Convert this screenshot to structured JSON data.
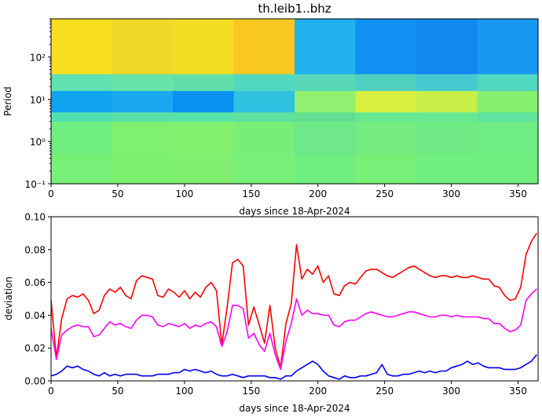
{
  "chart_data": [
    {
      "type": "heatmap",
      "title": "th.leib1..bhz",
      "xlabel": "days since 18-Apr-2024",
      "ylabel": "Period",
      "xlim": [
        0,
        365
      ],
      "ylim": [
        0.1,
        800
      ],
      "yscale": "log",
      "xticks": [
        "0",
        "50",
        "100",
        "150",
        "200",
        "250",
        "300",
        "350"
      ],
      "yticks": [
        "10⁻¹",
        "10⁰",
        "10¹",
        "10²"
      ],
      "period_bands": [
        {
          "from": 0.1,
          "to": 0.5,
          "colors": [
            "#78f078",
            "#7cf070",
            "#80ee70",
            "#78f078",
            "#70ee80",
            "#78f078",
            "#70ee80",
            "#70ee80"
          ]
        },
        {
          "from": 0.5,
          "to": 3,
          "colors": [
            "#70ee80",
            "#80f070",
            "#84f070",
            "#78ee78",
            "#6ee888",
            "#74ec80",
            "#70ea84",
            "#70ec84"
          ]
        },
        {
          "from": 3,
          "to": 5,
          "colors": [
            "#50e0b0",
            "#58e0a8",
            "#58e4a8",
            "#5ee0a0",
            "#60e090",
            "#68e890",
            "#68e890",
            "#60e4a0"
          ]
        },
        {
          "from": 5,
          "to": 16,
          "colors": [
            "#10a4f0",
            "#1aa8f0",
            "#0a90f0",
            "#30c0e0",
            "#90f070",
            "#d8f040",
            "#c8f048",
            "#88f070"
          ]
        },
        {
          "from": 16,
          "to": 40,
          "colors": [
            "#60e0b0",
            "#68e4a8",
            "#60e0a8",
            "#50d8c0",
            "#58d8b8",
            "#50d0c0",
            "#48c8d0",
            "#50d8c0"
          ]
        },
        {
          "from": 40,
          "to": 800,
          "colors": [
            "#f8e020",
            "#f0d828",
            "#f4dc20",
            "#f8c820",
            "#20b0f0",
            "#1090f0",
            "#1088f0",
            "#1898f0"
          ]
        }
      ]
    },
    {
      "type": "line",
      "xlabel": "days since 18-Apr-2024",
      "ylabel": "deviation",
      "xlim": [
        0,
        365
      ],
      "ylim": [
        0,
        0.1
      ],
      "xticks": [
        "0",
        "50",
        "100",
        "150",
        "200",
        "250",
        "300",
        "350"
      ],
      "yticks": [
        "0.00",
        "0.02",
        "0.04",
        "0.06",
        "0.08",
        "0.10"
      ],
      "x": [
        0,
        4,
        8,
        12,
        16,
        20,
        24,
        28,
        32,
        36,
        40,
        44,
        48,
        52,
        56,
        60,
        64,
        68,
        72,
        76,
        80,
        84,
        88,
        92,
        96,
        100,
        104,
        108,
        112,
        116,
        120,
        124,
        128,
        132,
        136,
        140,
        144,
        148,
        152,
        156,
        160,
        164,
        168,
        172,
        176,
        180,
        184,
        188,
        192,
        196,
        200,
        204,
        208,
        212,
        216,
        220,
        224,
        228,
        232,
        236,
        240,
        244,
        248,
        252,
        256,
        260,
        264,
        268,
        272,
        276,
        280,
        284,
        288,
        292,
        296,
        300,
        304,
        308,
        312,
        316,
        320,
        324,
        328,
        332,
        336,
        340,
        344,
        348,
        352,
        356,
        360,
        364
      ],
      "series": [
        {
          "color": "#ff0000",
          "values": [
            0.049,
            0.014,
            0.038,
            0.05,
            0.052,
            0.051,
            0.053,
            0.049,
            0.041,
            0.043,
            0.052,
            0.056,
            0.054,
            0.057,
            0.052,
            0.05,
            0.061,
            0.064,
            0.063,
            0.062,
            0.052,
            0.051,
            0.056,
            0.054,
            0.051,
            0.055,
            0.05,
            0.054,
            0.051,
            0.057,
            0.06,
            0.055,
            0.022,
            0.045,
            0.072,
            0.074,
            0.07,
            0.034,
            0.045,
            0.034,
            0.023,
            0.046,
            0.02,
            0.008,
            0.035,
            0.047,
            0.083,
            0.062,
            0.068,
            0.065,
            0.07,
            0.06,
            0.064,
            0.053,
            0.052,
            0.058,
            0.06,
            0.059,
            0.063,
            0.067,
            0.068,
            0.068,
            0.066,
            0.064,
            0.063,
            0.065,
            0.067,
            0.069,
            0.07,
            0.068,
            0.066,
            0.064,
            0.063,
            0.064,
            0.064,
            0.063,
            0.064,
            0.063,
            0.063,
            0.064,
            0.063,
            0.062,
            0.062,
            0.058,
            0.057,
            0.052,
            0.049,
            0.05,
            0.057,
            0.077,
            0.085,
            0.09
          ]
        },
        {
          "color": "#ff00ff",
          "values": [
            0.032,
            0.013,
            0.028,
            0.031,
            0.033,
            0.034,
            0.033,
            0.033,
            0.027,
            0.028,
            0.032,
            0.036,
            0.034,
            0.035,
            0.033,
            0.032,
            0.037,
            0.04,
            0.04,
            0.039,
            0.034,
            0.033,
            0.035,
            0.034,
            0.033,
            0.035,
            0.032,
            0.034,
            0.033,
            0.035,
            0.036,
            0.033,
            0.021,
            0.03,
            0.046,
            0.046,
            0.044,
            0.026,
            0.029,
            0.022,
            0.018,
            0.029,
            0.016,
            0.007,
            0.024,
            0.035,
            0.05,
            0.04,
            0.043,
            0.041,
            0.041,
            0.04,
            0.04,
            0.034,
            0.033,
            0.036,
            0.037,
            0.037,
            0.039,
            0.041,
            0.042,
            0.041,
            0.04,
            0.039,
            0.039,
            0.04,
            0.041,
            0.042,
            0.042,
            0.041,
            0.04,
            0.039,
            0.039,
            0.04,
            0.04,
            0.039,
            0.04,
            0.039,
            0.039,
            0.039,
            0.039,
            0.038,
            0.038,
            0.035,
            0.035,
            0.032,
            0.03,
            0.031,
            0.034,
            0.049,
            0.053,
            0.056
          ]
        },
        {
          "color": "#0000ff",
          "values": [
            0.003,
            0.004,
            0.006,
            0.009,
            0.008,
            0.009,
            0.007,
            0.006,
            0.004,
            0.003,
            0.005,
            0.003,
            0.004,
            0.003,
            0.004,
            0.004,
            0.004,
            0.003,
            0.003,
            0.003,
            0.004,
            0.004,
            0.004,
            0.005,
            0.005,
            0.007,
            0.006,
            0.007,
            0.006,
            0.005,
            0.006,
            0.004,
            0.003,
            0.003,
            0.004,
            0.003,
            0.002,
            0.003,
            0.003,
            0.003,
            0.003,
            0.002,
            0.002,
            0.001,
            0.003,
            0.003,
            0.006,
            0.008,
            0.01,
            0.012,
            0.01,
            0.006,
            0.003,
            0.002,
            0.001,
            0.003,
            0.002,
            0.002,
            0.003,
            0.003,
            0.004,
            0.005,
            0.01,
            0.004,
            0.003,
            0.003,
            0.004,
            0.004,
            0.005,
            0.006,
            0.005,
            0.006,
            0.005,
            0.006,
            0.006,
            0.008,
            0.009,
            0.01,
            0.012,
            0.01,
            0.011,
            0.009,
            0.008,
            0.008,
            0.008,
            0.007,
            0.007,
            0.007,
            0.008,
            0.01,
            0.012,
            0.016
          ]
        }
      ]
    }
  ]
}
